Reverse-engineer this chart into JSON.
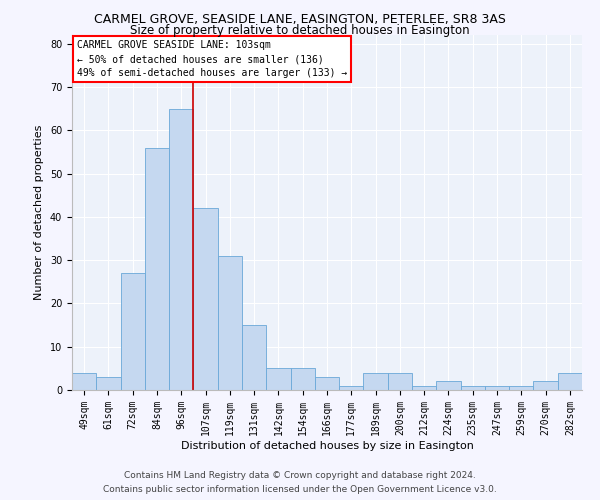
{
  "title": "CARMEL GROVE, SEASIDE LANE, EASINGTON, PETERLEE, SR8 3AS",
  "subtitle": "Size of property relative to detached houses in Easington",
  "xlabel": "Distribution of detached houses by size in Easington",
  "ylabel": "Number of detached properties",
  "categories": [
    "49sqm",
    "61sqm",
    "72sqm",
    "84sqm",
    "96sqm",
    "107sqm",
    "119sqm",
    "131sqm",
    "142sqm",
    "154sqm",
    "166sqm",
    "177sqm",
    "189sqm",
    "200sqm",
    "212sqm",
    "224sqm",
    "235sqm",
    "247sqm",
    "259sqm",
    "270sqm",
    "282sqm"
  ],
  "values": [
    4,
    3,
    27,
    56,
    65,
    42,
    31,
    15,
    5,
    5,
    3,
    1,
    4,
    4,
    1,
    2,
    1,
    1,
    1,
    2,
    4
  ],
  "bar_color": "#c5d8f0",
  "bar_edge_color": "#6aa8d8",
  "vline_color": "#cc0000",
  "vline_pos": 4.5,
  "annotation_text": "CARMEL GROVE SEASIDE LANE: 103sqm\n← 50% of detached houses are smaller (136)\n49% of semi-detached houses are larger (133) →",
  "ylim": [
    0,
    82
  ],
  "yticks": [
    0,
    10,
    20,
    30,
    40,
    50,
    60,
    70,
    80
  ],
  "footer_line1": "Contains HM Land Registry data © Crown copyright and database right 2024.",
  "footer_line2": "Contains public sector information licensed under the Open Government Licence v3.0.",
  "bg_color": "#edf2fa",
  "grid_color": "#ffffff",
  "title_fontsize": 9,
  "subtitle_fontsize": 8.5,
  "axis_label_fontsize": 8,
  "tick_fontsize": 7,
  "footer_fontsize": 6.5
}
